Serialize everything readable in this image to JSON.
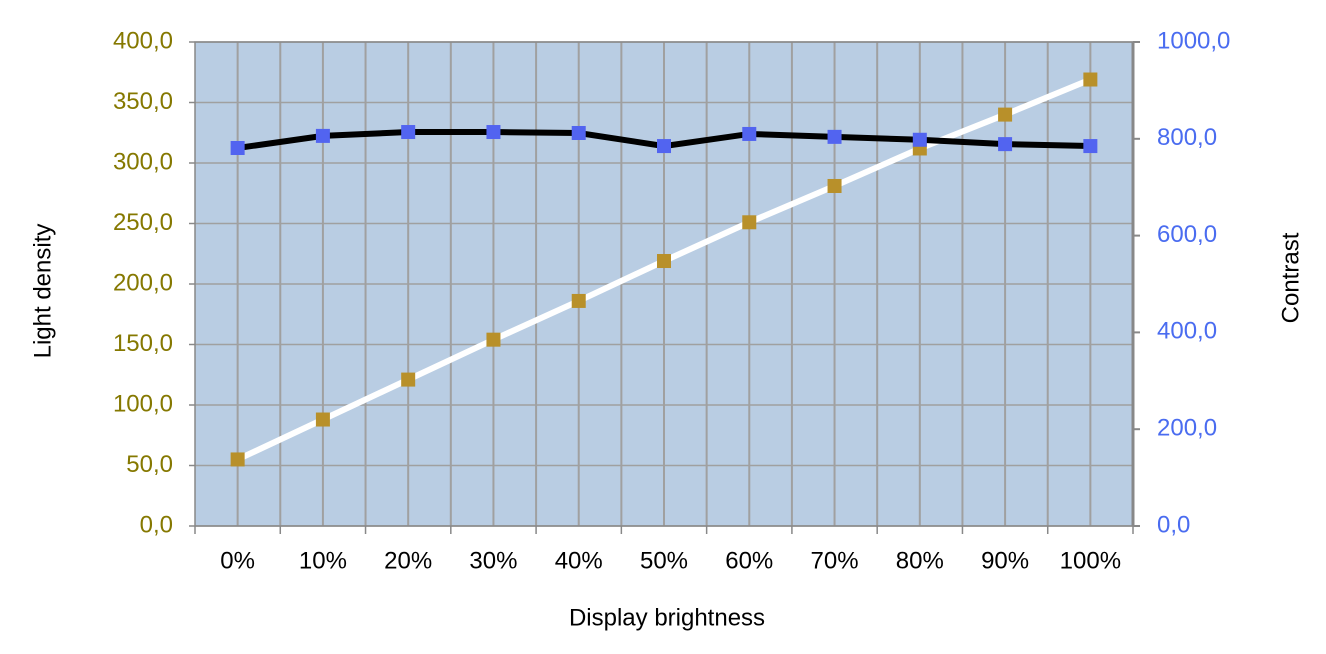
{
  "chart_data": {
    "type": "line",
    "x_label": "Display brightness",
    "y_label": "Light density",
    "y2_label": "Contrast",
    "categories": [
      "0%",
      "10%",
      "20%",
      "30%",
      "40%",
      "50%",
      "60%",
      "70%",
      "80%",
      "90%",
      "100%"
    ],
    "series": [
      {
        "line_color": "#ffffff",
        "color": "#b8902a",
        "values": [
          55,
          88,
          121,
          154,
          186,
          219,
          251,
          281,
          312,
          340,
          369
        ]
      },
      {
        "line_color": "#000000",
        "color": "#5264f0",
        "axis": "y2",
        "values": [
          781,
          806,
          814,
          814,
          812,
          785,
          810,
          804,
          798,
          789,
          785
        ]
      }
    ],
    "ylim": [
      0,
      400
    ],
    "yticks": [
      {
        "value": 0,
        "label": "0,0"
      },
      {
        "value": 50,
        "label": "50,0"
      },
      {
        "value": 100,
        "label": "100,0"
      },
      {
        "value": 150,
        "label": "150,0"
      },
      {
        "value": 200,
        "label": "200,0"
      },
      {
        "value": 250,
        "label": "250,0"
      },
      {
        "value": 300,
        "label": "300,0"
      },
      {
        "value": 350,
        "label": "350,0"
      },
      {
        "value": 400,
        "label": "400,0"
      }
    ],
    "y2lim": [
      0,
      1000
    ],
    "y2ticks": [
      {
        "value": 0,
        "label": "0,0"
      },
      {
        "value": 200,
        "label": "200,0"
      },
      {
        "value": 400,
        "label": "400,0"
      },
      {
        "value": 600,
        "label": "600,0"
      },
      {
        "value": 800,
        "label": "800,0"
      },
      {
        "value": 1000,
        "label": "1000,0"
      }
    ],
    "y_tick_color": "#857800",
    "y2_tick_color": "#4a6cf0",
    "plot_background": "#b9cde3",
    "grid": true
  }
}
